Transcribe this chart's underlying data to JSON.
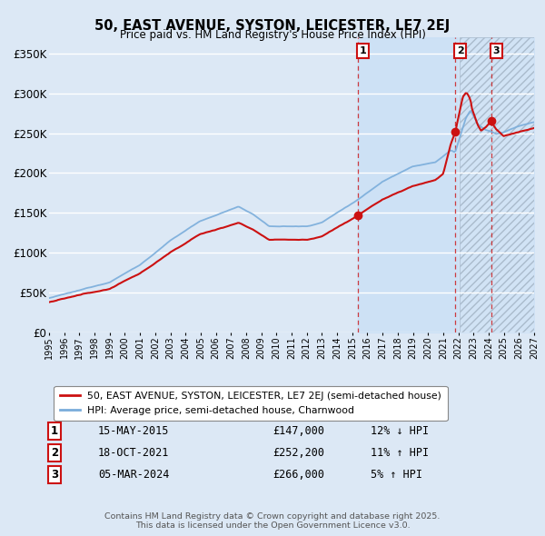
{
  "title": "50, EAST AVENUE, SYSTON, LEICESTER, LE7 2EJ",
  "subtitle": "Price paid vs. HM Land Registry's House Price Index (HPI)",
  "ylim": [
    0,
    370000
  ],
  "yticks": [
    0,
    50000,
    100000,
    150000,
    200000,
    250000,
    300000,
    350000
  ],
  "ytick_labels": [
    "£0",
    "£50K",
    "£100K",
    "£150K",
    "£200K",
    "£250K",
    "£300K",
    "£350K"
  ],
  "xstart_year": 1995,
  "xend_year": 2027,
  "bg_color": "#dce8f5",
  "plot_bg": "#dce8f5",
  "grid_color": "#ffffff",
  "hpi_color": "#7aaddb",
  "price_color": "#cc1111",
  "vline_color": "#cc1111",
  "shade_light_color": "#ccdff5",
  "shade_hatch_color": "#aabbcc",
  "legend_label_price": "50, EAST AVENUE, SYSTON, LEICESTER, LE7 2EJ (semi-detached house)",
  "legend_label_hpi": "HPI: Average price, semi-detached house, Charnwood",
  "transactions": [
    {
      "num": 1,
      "date": "15-MAY-2015",
      "year": 2015.37,
      "price": 147000,
      "label": "1",
      "pct": "12% ↓ HPI"
    },
    {
      "num": 2,
      "date": "18-OCT-2021",
      "year": 2021.79,
      "price": 252200,
      "label": "2",
      "pct": "11% ↑ HPI"
    },
    {
      "num": 3,
      "date": "05-MAR-2024",
      "year": 2024.17,
      "price": 266000,
      "label": "3",
      "pct": "5% ↑ HPI"
    }
  ],
  "footer": "Contains HM Land Registry data © Crown copyright and database right 2025.\nThis data is licensed under the Open Government Licence v3.0."
}
